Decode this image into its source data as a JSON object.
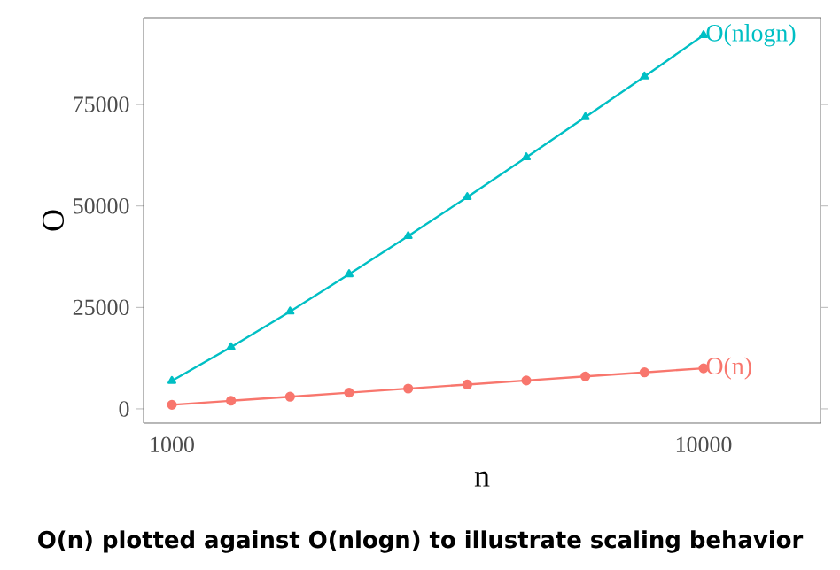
{
  "chart_data": {
    "type": "line",
    "title": "O(n) plotted against O(nlogn) to illustrate scaling behavior",
    "xlabel": "n",
    "ylabel": "O",
    "x": [
      1000,
      2000,
      3000,
      4000,
      5000,
      6000,
      7000,
      8000,
      9000,
      10000
    ],
    "series": [
      {
        "name": "O(n)",
        "color": "#f8766d",
        "marker": "circle",
        "values": [
          1000,
          2000,
          3000,
          4000,
          5000,
          6000,
          7000,
          8000,
          9000,
          10000
        ]
      },
      {
        "name": "O(nlogn)",
        "color": "#00bfc4",
        "marker": "triangle",
        "values": [
          6900,
          15200,
          24000,
          33200,
          42600,
          52200,
          62000,
          71900,
          81900,
          92100
        ]
      }
    ],
    "xlim": [
      520,
      11980
    ],
    "xticks": [
      1000,
      10000
    ],
    "ylim": [
      -3500,
      96400
    ],
    "yticks": [
      0,
      25000,
      50000,
      75000
    ],
    "grid": false,
    "legend": false
  }
}
